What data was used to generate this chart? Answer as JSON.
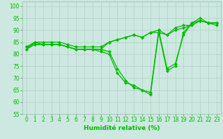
{
  "xlabel": "Humidité relative (%)",
  "bg_color": "#cce8e0",
  "line_color": "#00bb00",
  "grid_color": "#aaccbb",
  "xlim": [
    -0.5,
    23.5
  ],
  "ylim": [
    55,
    102
  ],
  "yticks": [
    55,
    60,
    65,
    70,
    75,
    80,
    85,
    90,
    95,
    100
  ],
  "xticks": [
    0,
    1,
    2,
    3,
    4,
    5,
    6,
    7,
    8,
    9,
    10,
    11,
    12,
    13,
    14,
    15,
    16,
    17,
    18,
    19,
    20,
    21,
    22,
    23
  ],
  "curves": [
    [
      82,
      85,
      84,
      84,
      84,
      83,
      82,
      82,
      82,
      81,
      80,
      72,
      68,
      67,
      65,
      63,
      89,
      73,
      75,
      89,
      93,
      94,
      93,
      92
    ],
    [
      83,
      84,
      84,
      84,
      84,
      83,
      82,
      82,
      82,
      82,
      81,
      74,
      69,
      66,
      65,
      64,
      90,
      74,
      76,
      88,
      93,
      95,
      93,
      93
    ],
    [
      83,
      85,
      85,
      85,
      85,
      84,
      83,
      83,
      83,
      83,
      85,
      86,
      87,
      88,
      87,
      89,
      90,
      88,
      91,
      92,
      92,
      94,
      93,
      93
    ],
    [
      82,
      84,
      84,
      84,
      84,
      83,
      82,
      82,
      82,
      82,
      85,
      86,
      87,
      88,
      87,
      89,
      89,
      88,
      90,
      91,
      92,
      94,
      93,
      93
    ]
  ],
  "xlabel_fontsize": 6.5,
  "tick_fontsize": 5.5,
  "linewidth": 0.9,
  "markersize": 2.2
}
